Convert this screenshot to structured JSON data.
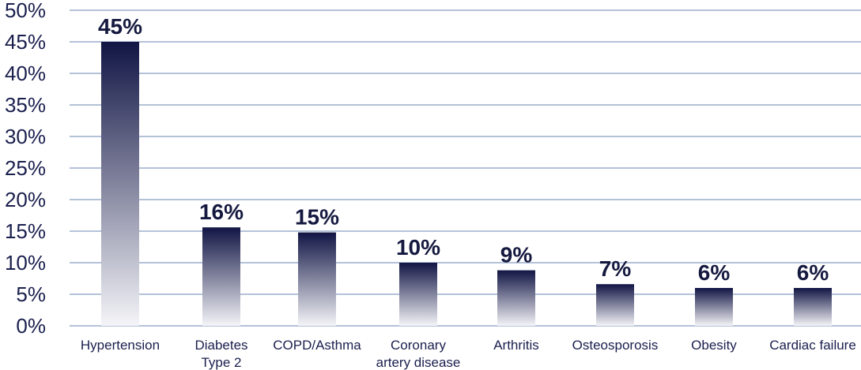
{
  "chart_data": {
    "type": "bar",
    "categories": [
      [
        "Hypertension"
      ],
      [
        "Diabetes",
        "Type 2"
      ],
      [
        "COPD/Asthma"
      ],
      [
        "Coronary",
        "artery disease"
      ],
      [
        "Arthritis"
      ],
      [
        "Osteosporosis"
      ],
      [
        "Obesity"
      ],
      [
        "Cardiac failure"
      ]
    ],
    "values": [
      45,
      15.6,
      14.8,
      10,
      8.8,
      6.6,
      6,
      6
    ],
    "data_labels": [
      "45%",
      "16%",
      "15%",
      "10%",
      "9%",
      "7%",
      "6%",
      "6%"
    ],
    "y_ticks": [
      "0%",
      "5%",
      "10%",
      "15%",
      "20%",
      "25%",
      "30%",
      "35%",
      "40%",
      "45%",
      "50%"
    ],
    "ylim": [
      0,
      50
    ],
    "grid": true,
    "legend": "none",
    "colors": {
      "bar_top": "#111544",
      "bar_bottom": "#f4f4f8",
      "grid": "#b4c2d8",
      "text": "#1a1f4d"
    }
  }
}
